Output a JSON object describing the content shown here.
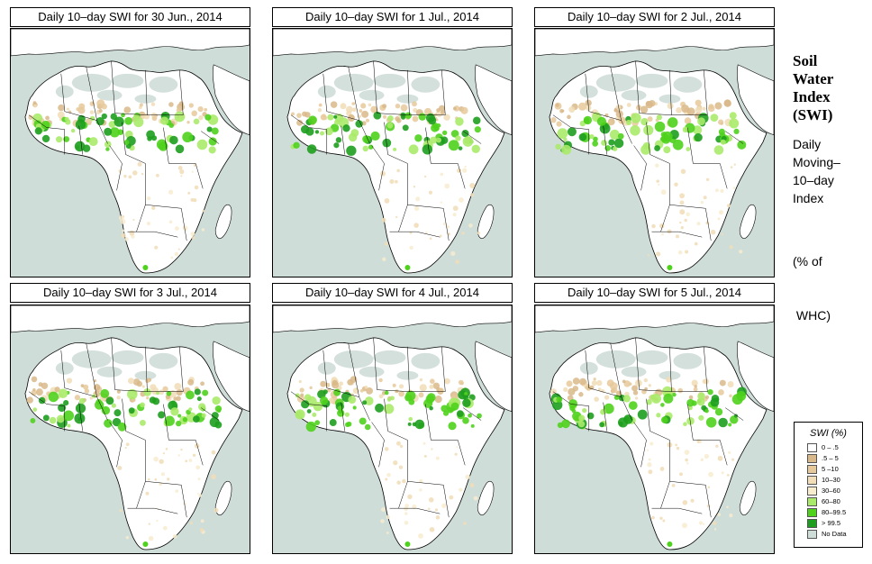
{
  "panels": [
    {
      "title": "Daily 10–day SWI for  30 Jun., 2014"
    },
    {
      "title": "Daily 10–day SWI for  1 Jul., 2014"
    },
    {
      "title": "Daily 10–day SWI for  2 Jul., 2014"
    },
    {
      "title": "Daily 10–day SWI for  3 Jul., 2014"
    },
    {
      "title": "Daily 10–day SWI for  4 Jul., 2014"
    },
    {
      "title": "Daily 10–day SWI for  5 Jul., 2014"
    }
  ],
  "sidebar": {
    "title_lines": [
      "Soil",
      "Water",
      "Index",
      "(SWI)"
    ],
    "desc_lines": [
      "Daily",
      "Moving–",
      "10–day",
      "Index"
    ],
    "unit_lines": [
      "(% of",
      " WHC)"
    ]
  },
  "legend": {
    "title": "SWI (%)",
    "items": [
      {
        "label": "0 – .5",
        "color": "#ffffff"
      },
      {
        "label": ".5 – 5",
        "color": "#d9b98a"
      },
      {
        "label": "5 –10",
        "color": "#e6c99a"
      },
      {
        "label": "10–30",
        "color": "#f1ddb7"
      },
      {
        "label": "30–60",
        "color": "#f8eccf"
      },
      {
        "label": "60–80",
        "color": "#aaea6a"
      },
      {
        "label": "80–99.5",
        "color": "#4fd21c"
      },
      {
        "label": "> 99.5",
        "color": "#1e9e1e"
      },
      {
        "label": "No Data",
        "color": "#cfddd8"
      }
    ]
  }
}
